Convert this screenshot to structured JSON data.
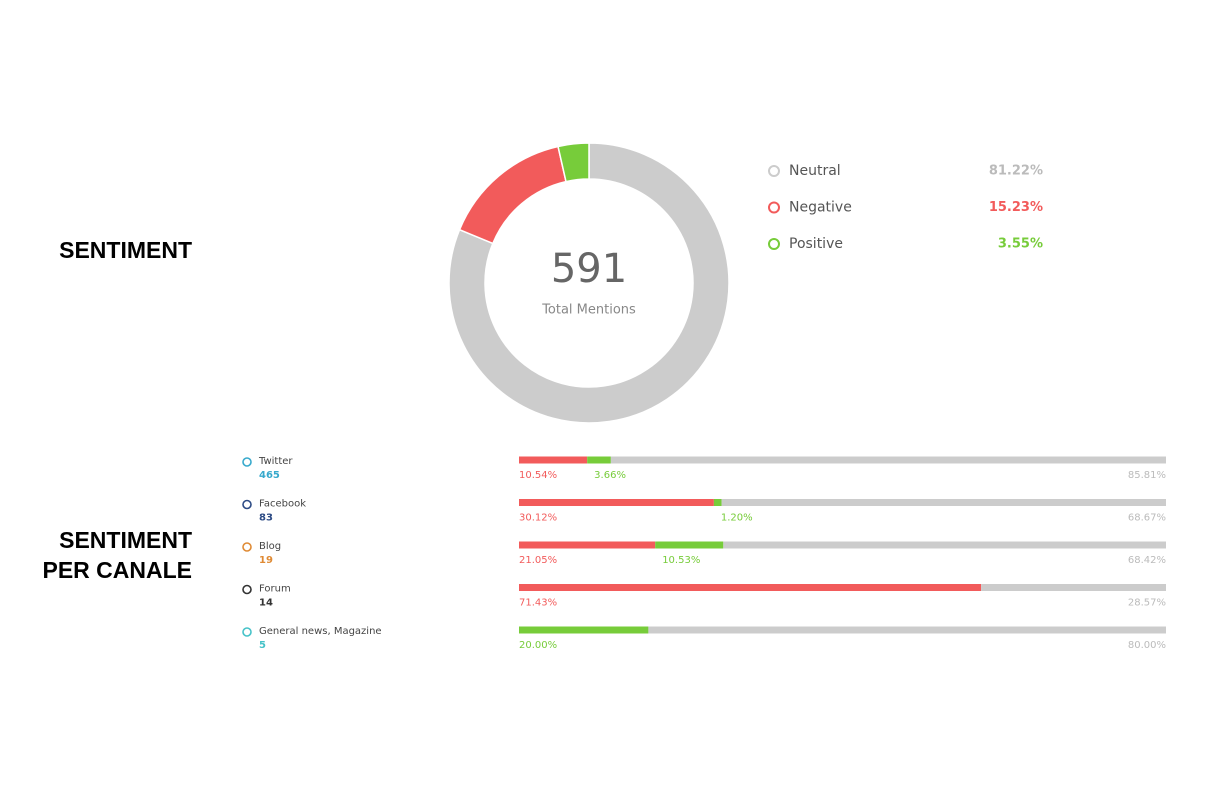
{
  "chart_data": [
    {
      "type": "pie",
      "title": "SENTIMENT",
      "total": "591",
      "total_label": "Total Mentions",
      "categories": [
        "Neutral",
        "Negative",
        "Positive"
      ],
      "values": [
        81.22,
        15.23,
        3.55
      ],
      "value_labels": [
        "81.22%",
        "15.23%",
        "3.55%"
      ],
      "colors": [
        "#cccccc",
        "#f25b5b",
        "#77cc3a"
      ],
      "donut": true
    },
    {
      "type": "stacked-bar",
      "title": [
        "SENTIMENT",
        "PER CANALE"
      ],
      "categories": [
        "Twitter",
        "Facebook",
        "Blog",
        "Forum",
        "General news, Magazine"
      ],
      "counts": [
        "465",
        "83",
        "19",
        "14",
        "5"
      ],
      "category_colors": [
        "#37a9cc",
        "#2d4b85",
        "#df8a34",
        "#333333",
        "#45c2c8"
      ],
      "series": [
        {
          "color": "#f25b5b",
          "values": [
            10.54,
            30.12,
            21.05,
            71.43,
            null
          ],
          "value_labels": [
            "10.54%",
            "30.12%",
            "21.05%",
            "71.43%",
            null
          ]
        },
        {
          "color": "#77cc3a",
          "values": [
            3.66,
            1.2,
            10.53,
            null,
            20.0
          ],
          "value_labels": [
            "3.66%",
            "1.20%",
            "10.53%",
            null,
            "20.00%"
          ]
        },
        {
          "color": "#cccccc",
          "values": [
            85.81,
            68.67,
            68.42,
            28.57,
            80.0
          ],
          "value_labels": [
            "85.81%",
            "68.67%",
            "68.42%",
            "28.57%",
            "80.00%"
          ]
        }
      ]
    }
  ]
}
